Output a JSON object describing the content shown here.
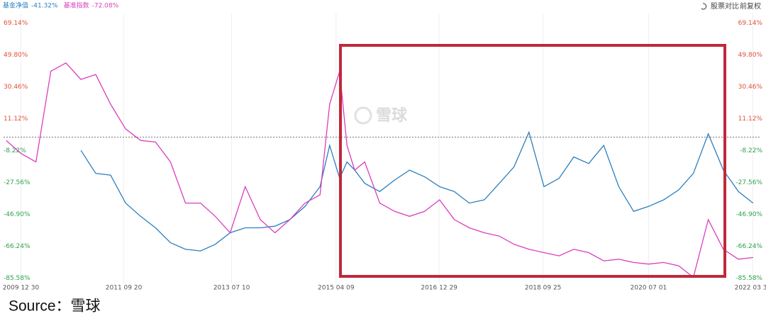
{
  "chart_data": {
    "type": "line",
    "series": [
      {
        "name": "基金净值",
        "legend_value_label": "-41.32%",
        "color": "#2b7fbf",
        "values": [
          null,
          null,
          null,
          null,
          null,
          -8,
          -22,
          -23,
          -40,
          -48,
          -55,
          -64,
          -68,
          -69,
          -65,
          -58,
          -55,
          -55,
          -54,
          -50,
          -42,
          -30,
          -5,
          -25,
          -15,
          -20,
          -28,
          -33,
          -26,
          -20,
          -24,
          -30,
          -33,
          -40,
          -38,
          -28,
          -18,
          3,
          -30,
          -25,
          -12,
          -16,
          -5,
          -30,
          -45,
          -42,
          -38,
          -32,
          -22,
          2,
          -20,
          -33,
          -40
        ]
      },
      {
        "name": "基准指数",
        "legend_value_label": "-72.08%",
        "color": "#d93fbd",
        "values": [
          -2,
          -10,
          -15,
          40,
          45,
          35,
          38,
          20,
          5,
          -2,
          -3,
          -15,
          -40,
          -40,
          -48,
          -58,
          -30,
          -50,
          -58,
          -50,
          -40,
          -35,
          20,
          40,
          -5,
          -20,
          -15,
          -40,
          -45,
          -48,
          -45,
          -38,
          -50,
          -55,
          -58,
          -60,
          -65,
          -68,
          -70,
          -72,
          -68,
          -70,
          -75,
          -74,
          -76,
          -77,
          -76,
          -78,
          -85,
          -50,
          -68,
          -74,
          -73
        ]
      }
    ],
    "x": [
      "2009-10-01",
      "2010-01-01",
      "2010-04-01",
      "2010-07-01",
      "2010-10-01",
      "2011-01-01",
      "2011-04-01",
      "2011-07-01",
      "2011-10-01",
      "2012-01-01",
      "2012-04-01",
      "2012-07-01",
      "2012-10-01",
      "2013-01-01",
      "2013-04-01",
      "2013-07-01",
      "2013-10-01",
      "2014-01-01",
      "2014-04-01",
      "2014-07-01",
      "2014-10-01",
      "2015-01-01",
      "2015-03-01",
      "2015-05-01",
      "2015-06-15",
      "2015-08-01",
      "2015-10-01",
      "2016-01-01",
      "2016-04-01",
      "2016-07-01",
      "2016-10-01",
      "2017-01-01",
      "2017-04-01",
      "2017-07-01",
      "2017-10-01",
      "2018-01-01",
      "2018-04-01",
      "2018-07-01",
      "2018-10-01",
      "2019-01-01",
      "2019-04-01",
      "2019-07-01",
      "2019-10-01",
      "2020-01-01",
      "2020-04-01",
      "2020-07-01",
      "2020-10-01",
      "2021-01-01",
      "2021-04-01",
      "2021-07-01",
      "2021-10-01",
      "2022-01-01",
      "2022-04-01"
    ],
    "xlim": [
      "2009-09-15",
      "2022-05-15"
    ],
    "xticks": [
      {
        "value": "2009-12-30",
        "label": "2009 12 30"
      },
      {
        "value": "2011-09-20",
        "label": "2011 09 20"
      },
      {
        "value": "2013-07-10",
        "label": "2013 07 10"
      },
      {
        "value": "2015-04-09",
        "label": "2015 04 09"
      },
      {
        "value": "2016-12-29",
        "label": "2016 12 29"
      },
      {
        "value": "2018-09-25",
        "label": "2018 09 25"
      },
      {
        "value": "2020-07-01",
        "label": "2020 07 01"
      },
      {
        "value": "2022-03-30",
        "label": "2022 03 30"
      }
    ],
    "ylim": [
      -90,
      75
    ],
    "yticks": [
      {
        "value": 69.14,
        "label": "69.14%"
      },
      {
        "value": 49.8,
        "label": "49.80%"
      },
      {
        "value": 30.46,
        "label": "30.46%"
      },
      {
        "value": 11.12,
        "label": "11.12%"
      },
      {
        "value": -8.22,
        "label": "-8.22%"
      },
      {
        "value": -27.56,
        "label": "-27.56%"
      },
      {
        "value": -46.9,
        "label": "-46.90%"
      },
      {
        "value": -66.24,
        "label": "-66.24%"
      },
      {
        "value": -85.58,
        "label": "-85.58%"
      }
    ],
    "positive_tick_color": "#e0503c",
    "negative_tick_color": "#2ea14e",
    "baseline": 0,
    "grid": true,
    "controls": [
      "股票对比",
      "前复权"
    ],
    "watermark": "雪球",
    "source": "Source：雪球"
  }
}
